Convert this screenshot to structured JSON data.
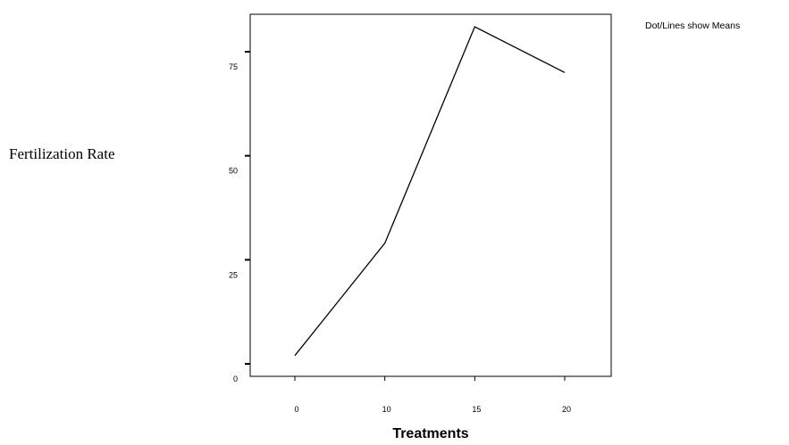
{
  "chart_data": {
    "type": "line",
    "xlabel": "Treatments",
    "ylabel": "Fertilization Rate",
    "annotation": "Dot/Lines show Means",
    "x": [
      0,
      10,
      15,
      20
    ],
    "x_tick_labels": [
      "0",
      "10",
      "15",
      "20"
    ],
    "series": [
      {
        "values": [
          2,
          29,
          81,
          70
        ]
      }
    ],
    "y_ticks": [
      0,
      25,
      50,
      75
    ],
    "y_tick_labels": [
      "0",
      "25",
      "50",
      "75"
    ],
    "ylim": [
      -3,
      84
    ],
    "grid": false,
    "colors": {
      "line": "#000000",
      "axis": "#000000"
    }
  }
}
